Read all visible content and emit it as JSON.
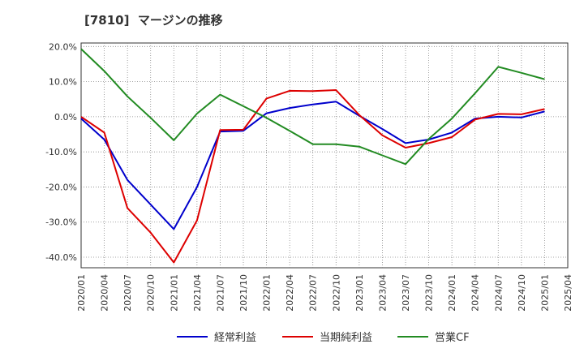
{
  "chart_data": {
    "type": "line",
    "title": "[7810]  マージンの推移",
    "xlabel": "",
    "ylabel": "",
    "ylim": [
      -43,
      21
    ],
    "grid": true,
    "legend_position": "bottom",
    "y_ticks": [
      "20.0%",
      "10.0%",
      "0.0%",
      "-10.0%",
      "-20.0%",
      "-30.0%",
      "-40.0%"
    ],
    "y_tick_values": [
      20,
      10,
      0,
      -10,
      -20,
      -30,
      -40
    ],
    "x": [
      "2020/01",
      "2020/04",
      "2020/07",
      "2020/10",
      "2021/01",
      "2021/04",
      "2021/07",
      "2021/10",
      "2022/01",
      "2022/04",
      "2022/07",
      "2022/10",
      "2023/01",
      "2023/04",
      "2023/07",
      "2023/10",
      "2024/01",
      "2024/04",
      "2024/07",
      "2024/10",
      "2025/01",
      "2025/04"
    ],
    "series": [
      {
        "name": "経常利益",
        "color": "#0000cc",
        "values": [
          -0.5,
          -6.5,
          -18,
          -25,
          -32,
          -20,
          -4.2,
          -4,
          1,
          2.5,
          3.5,
          4.3,
          0.3,
          -3.5,
          -7.5,
          -6.5,
          -4.5,
          -0.5,
          0,
          -0.2,
          1.5,
          null
        ]
      },
      {
        "name": "当期純利益",
        "color": "#dd0000",
        "values": [
          0,
          -4.5,
          -26,
          -33,
          -41.5,
          -29.5,
          -3.8,
          -3.7,
          5.2,
          7.4,
          7.3,
          7.6,
          0.5,
          -5.3,
          -8.8,
          -7.5,
          -5.8,
          -0.8,
          0.8,
          0.7,
          2.2,
          null
        ]
      },
      {
        "name": "営業CF",
        "color": "#228b22",
        "values": [
          19.3,
          13,
          5.8,
          -0.3,
          -6.7,
          0.9,
          6.3,
          3,
          -0.3,
          -4,
          -7.8,
          -7.8,
          -8.5,
          -11,
          -13.5,
          -6.3,
          -0.5,
          6.7,
          14.2,
          12.5,
          10.7,
          null
        ]
      }
    ]
  }
}
